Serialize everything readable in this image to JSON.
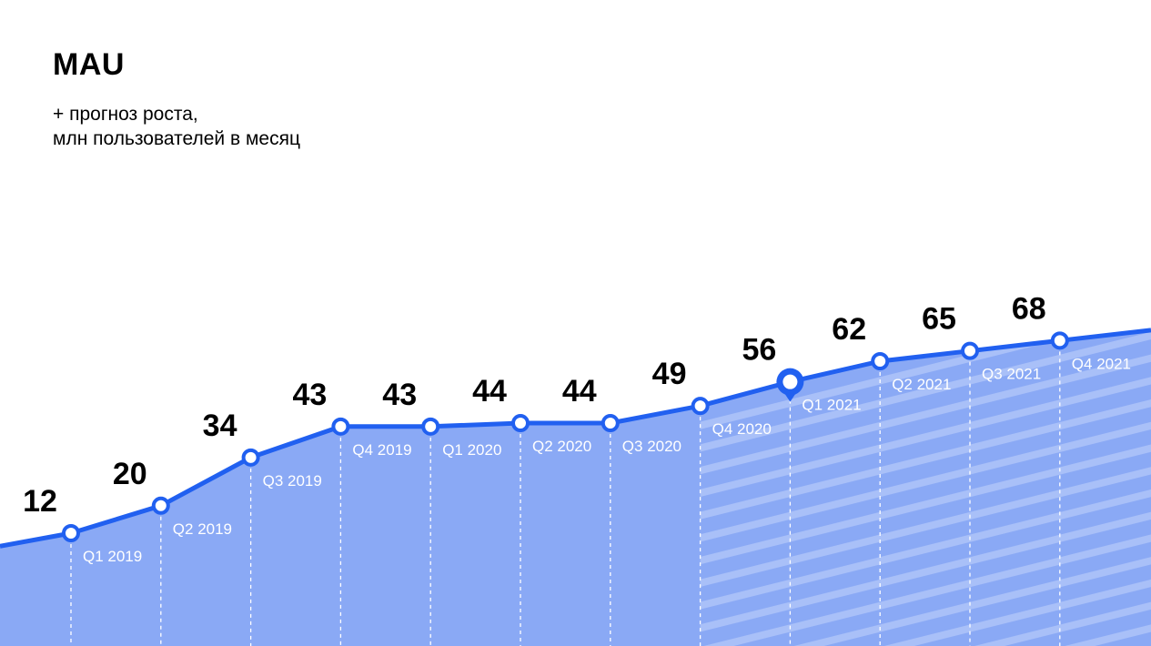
{
  "header": {
    "title": "MAU",
    "subtitle_line1": "+ прогноз роста,",
    "subtitle_line2": "млн пользователей в месяц"
  },
  "colors": {
    "line": "#2160f0",
    "area": "#8aa9f5",
    "forecast_stripe": "#a9c0f8",
    "value_label": "#000000",
    "quarter_label": "#ffffff"
  },
  "chart_data": {
    "type": "area",
    "title": "MAU",
    "subtitle": "+ прогноз роста, млн пользователей в месяц",
    "categories": [
      "Q1 2019",
      "Q2 2019",
      "Q3 2019",
      "Q4 2019",
      "Q1 2020",
      "Q2 2020",
      "Q3 2020",
      "Q4 2020",
      "Q1 2021",
      "Q2 2021",
      "Q3 2021",
      "Q4 2021"
    ],
    "values": [
      12,
      20,
      34,
      43,
      43,
      44,
      44,
      49,
      56,
      62,
      65,
      68
    ],
    "value_labels": [
      "12",
      "20",
      "34",
      "43",
      "43",
      "44",
      "44",
      "49",
      "56",
      "62",
      "65",
      "68"
    ],
    "forecast_start": "Q4 2020",
    "current_point": "Q1 2021",
    "grid": false,
    "legend": "none",
    "ylim": [
      0,
      80
    ]
  }
}
